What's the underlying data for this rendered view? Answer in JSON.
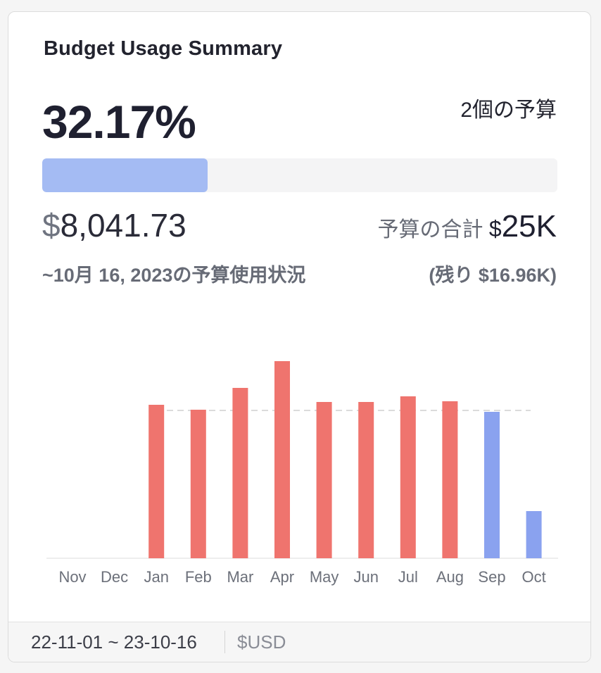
{
  "card": {
    "title": "Budget Usage Summary",
    "percent": "32.17%",
    "budget_count": "2個の予算",
    "progress_fraction": 0.3217,
    "used_currency": "$",
    "used_amount": "8,041.73",
    "total_label": "予算の合計",
    "total_currency": "$",
    "total_value": "25K",
    "as_of": "~10月 16, 2023の予算使用状況",
    "remaining": "(残り $16.96K)"
  },
  "footer": {
    "date_range": "22-11-01 ~ 23-10-16",
    "currency": "$USD"
  },
  "colors": {
    "over": "#ef746e",
    "under": "#8aa2ef",
    "progress": "#a4bbf3",
    "threshold": "#cfcfcf"
  },
  "chart_data": {
    "type": "bar",
    "categories": [
      "Nov",
      "Dec",
      "Jan",
      "Feb",
      "Mar",
      "Apr",
      "May",
      "Jun",
      "Jul",
      "Aug",
      "Sep",
      "Oct"
    ],
    "values": [
      0,
      0,
      2180,
      2110,
      2420,
      2800,
      2220,
      2220,
      2300,
      2230,
      2080,
      670
    ],
    "threshold": 2100,
    "over_threshold": [
      false,
      false,
      true,
      true,
      true,
      true,
      true,
      true,
      true,
      true,
      false,
      false
    ],
    "ylim": [
      0,
      3000
    ],
    "grid": false,
    "legend": "none"
  }
}
